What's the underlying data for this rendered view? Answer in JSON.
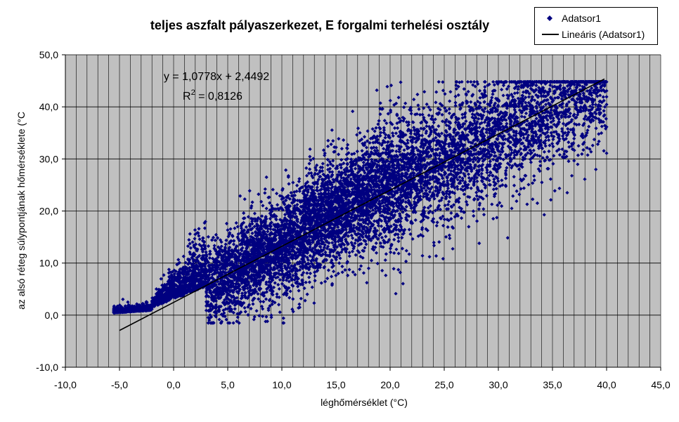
{
  "chart_data": {
    "type": "scatter",
    "title": "teljes aszfalt pályaszerkezet, E forgalmi terhelési osztály",
    "xlabel": "léghőmérséklet (°C)",
    "ylabel": "az alsó réteg súlypontjának hőmérséklete (°C",
    "xlim": [
      -10,
      45
    ],
    "ylim": [
      -10,
      50
    ],
    "x_major": 5,
    "y_major": 10,
    "x_minor": 1,
    "xtick_labels": [
      "-10,0",
      "-5,0",
      "0,0",
      "5,0",
      "10,0",
      "15,0",
      "20,0",
      "25,0",
      "30,0",
      "35,0",
      "40,0",
      "45,0"
    ],
    "ytick_labels": [
      "-10,0",
      "0,0",
      "10,0",
      "20,0",
      "30,0",
      "40,0",
      "50,0"
    ],
    "grid": true,
    "plot_background": "#c0c0c0",
    "legend_position": "top-right",
    "series": [
      {
        "name": "Adatsor1",
        "kind": "scatter",
        "marker": "diamond",
        "color": "#000080",
        "point_count": 9000,
        "x_range": [
          -5.5,
          40
        ],
        "description_points": [
          {
            "x": -5.0,
            "y": 0.5
          },
          {
            "x": -3.0,
            "y": 0.0
          },
          {
            "x": 0.0,
            "y": 2.0
          },
          {
            "x": 5.0,
            "y": 7.0
          },
          {
            "x": 10.0,
            "y": 12.5
          },
          {
            "x": 15.0,
            "y": 20.0
          },
          {
            "x": 20.0,
            "y": 25.0
          },
          {
            "x": 25.0,
            "y": 29.0
          },
          {
            "x": 30.0,
            "y": 34.0
          },
          {
            "x": 35.0,
            "y": 39.0
          },
          {
            "x": 39.5,
            "y": 40.5
          }
        ]
      },
      {
        "name": "Lineáris (Adatsor1)",
        "kind": "trendline",
        "color": "#000000",
        "slope": 1.0778,
        "intercept": 2.4492,
        "x_range": [
          -5.0,
          39.8
        ]
      }
    ],
    "annotations": {
      "equation": "y = 1,0778x + 2,4492",
      "r2_prefix": "R",
      "r2_exp": "2",
      "r2_value": " = 0,8126"
    }
  },
  "legend": {
    "series1_label": "Adatsor1",
    "series2_label": "Lineáris (Adatsor1)"
  }
}
